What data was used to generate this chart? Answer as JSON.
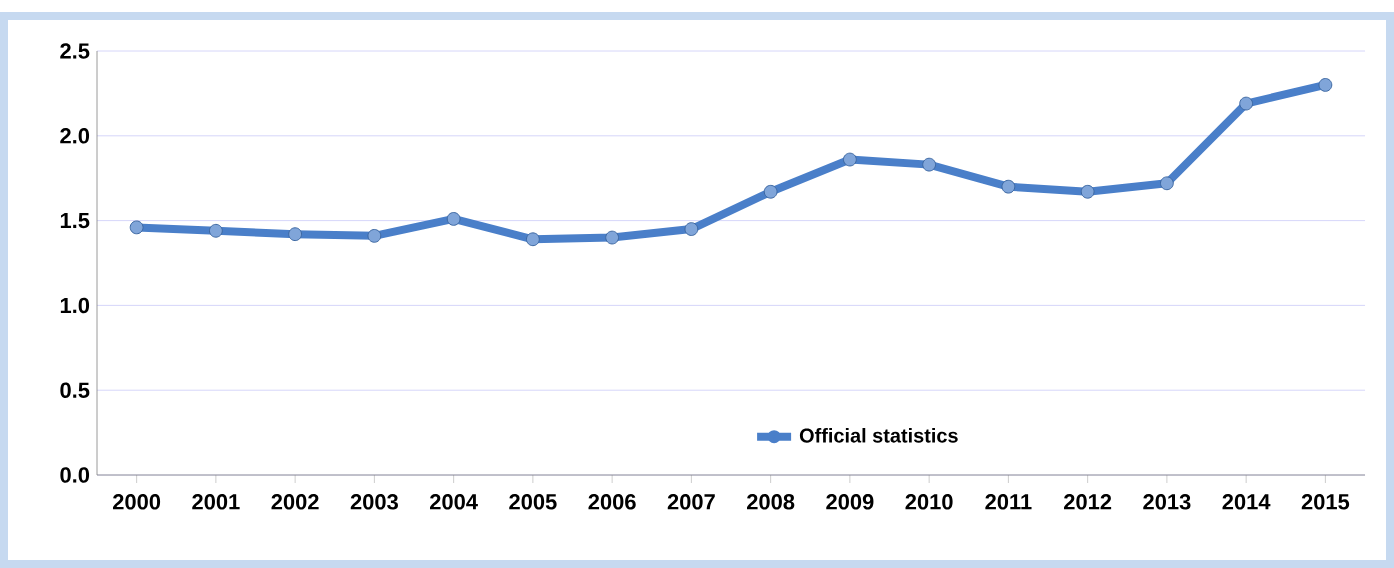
{
  "chart_data": {
    "type": "line",
    "categories": [
      "2000",
      "2001",
      "2002",
      "2003",
      "2004",
      "2005",
      "2006",
      "2007",
      "2008",
      "2009",
      "2010",
      "2011",
      "2012",
      "2013",
      "2014",
      "2015"
    ],
    "series": [
      {
        "name": "Official statistics",
        "color": "#4a7fc9",
        "values": [
          1.46,
          1.44,
          1.42,
          1.41,
          1.51,
          1.39,
          1.4,
          1.45,
          1.67,
          1.86,
          1.83,
          1.7,
          1.67,
          1.72,
          2.19,
          2.3
        ]
      }
    ],
    "ylim": [
      0,
      2.5
    ],
    "yticks": [
      {
        "value": 0,
        "label": "0.0"
      },
      {
        "value": 0.5,
        "label": "0.5"
      },
      {
        "value": 1,
        "label": "1.0"
      },
      {
        "value": 1.5,
        "label": "1.5"
      },
      {
        "value": 2,
        "label": "2.0"
      },
      {
        "value": 2.5,
        "label": "2.5"
      }
    ],
    "grid": "y",
    "legend": "bottom",
    "marker": "circle",
    "line_style": "solid"
  }
}
